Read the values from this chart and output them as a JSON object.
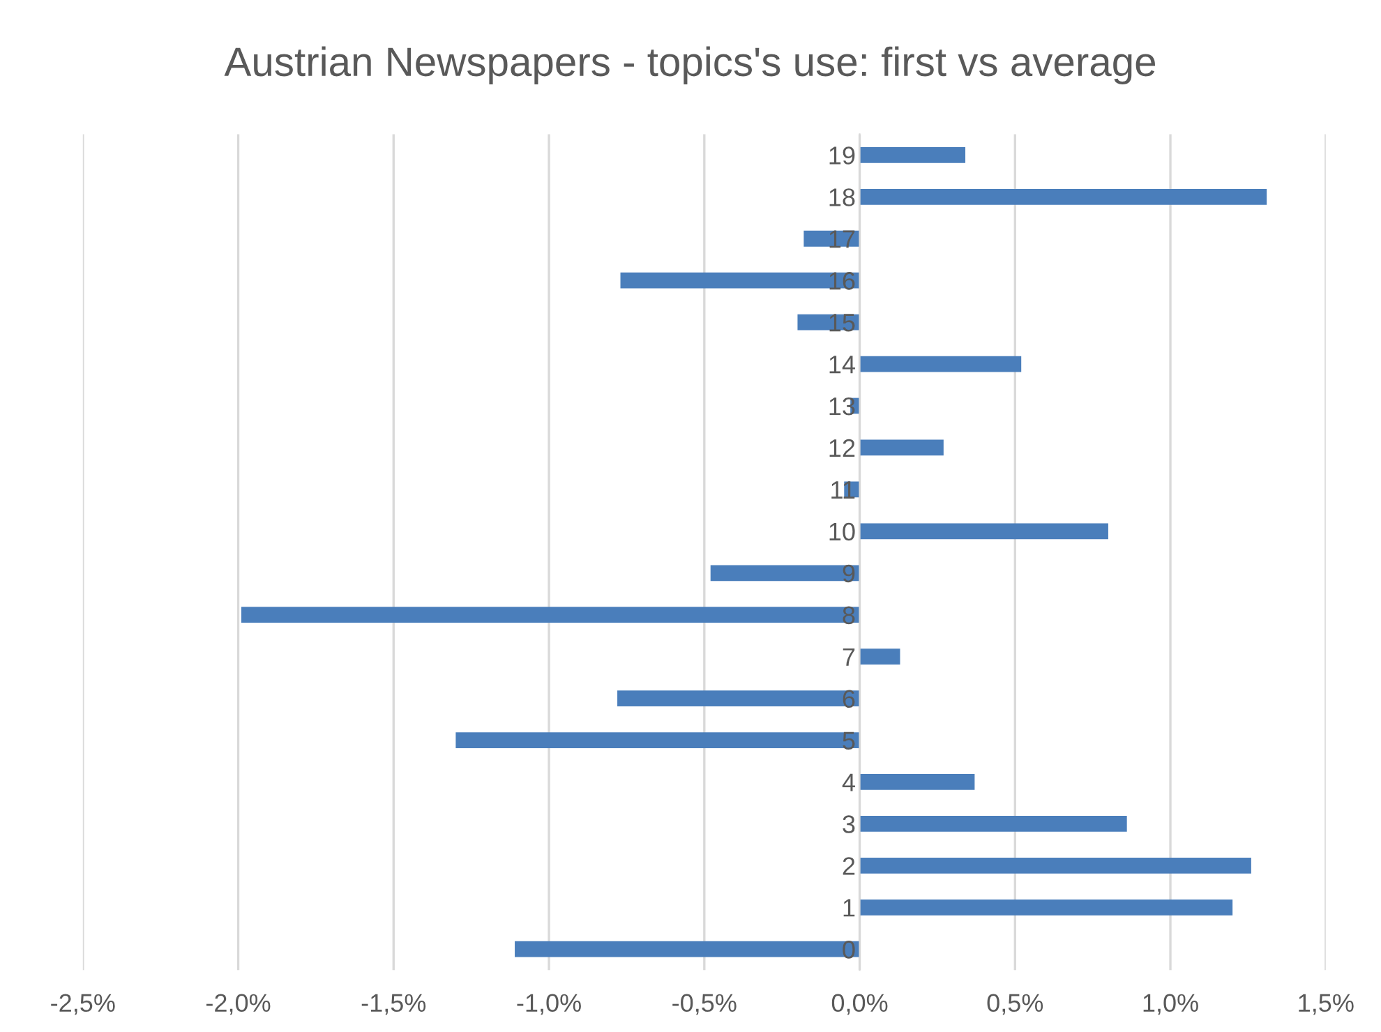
{
  "chart_data": {
    "type": "bar",
    "orientation": "horizontal",
    "title": "Austrian Newspapers - topics's use: first vs average",
    "categories": [
      "19",
      "18",
      "17",
      "16",
      "15",
      "14",
      "13",
      "12",
      "11",
      "10",
      "9",
      "8",
      "7",
      "6",
      "5",
      "4",
      "3",
      "2",
      "1",
      "0"
    ],
    "values": [
      0.34,
      1.31,
      -0.18,
      -0.77,
      -0.2,
      0.52,
      -0.03,
      0.27,
      -0.05,
      0.8,
      -0.48,
      -1.99,
      0.13,
      -0.78,
      -1.3,
      0.37,
      0.86,
      1.26,
      1.2,
      -1.11
    ],
    "color": "#4a7ebb",
    "xlim": [
      -2.5,
      1.5
    ],
    "xticks": [
      {
        "value": -2.5,
        "label": "-2,5%"
      },
      {
        "value": -2.0,
        "label": "-2,0%"
      },
      {
        "value": -1.5,
        "label": "-1,5%"
      },
      {
        "value": -1.0,
        "label": "-1,0%"
      },
      {
        "value": -0.5,
        "label": "-0,5%"
      },
      {
        "value": 0.0,
        "label": "0,0%"
      },
      {
        "value": 0.5,
        "label": "0,5%"
      },
      {
        "value": 1.0,
        "label": "1,0%"
      },
      {
        "value": 1.5,
        "label": "1,5%"
      }
    ],
    "grid": "x"
  }
}
